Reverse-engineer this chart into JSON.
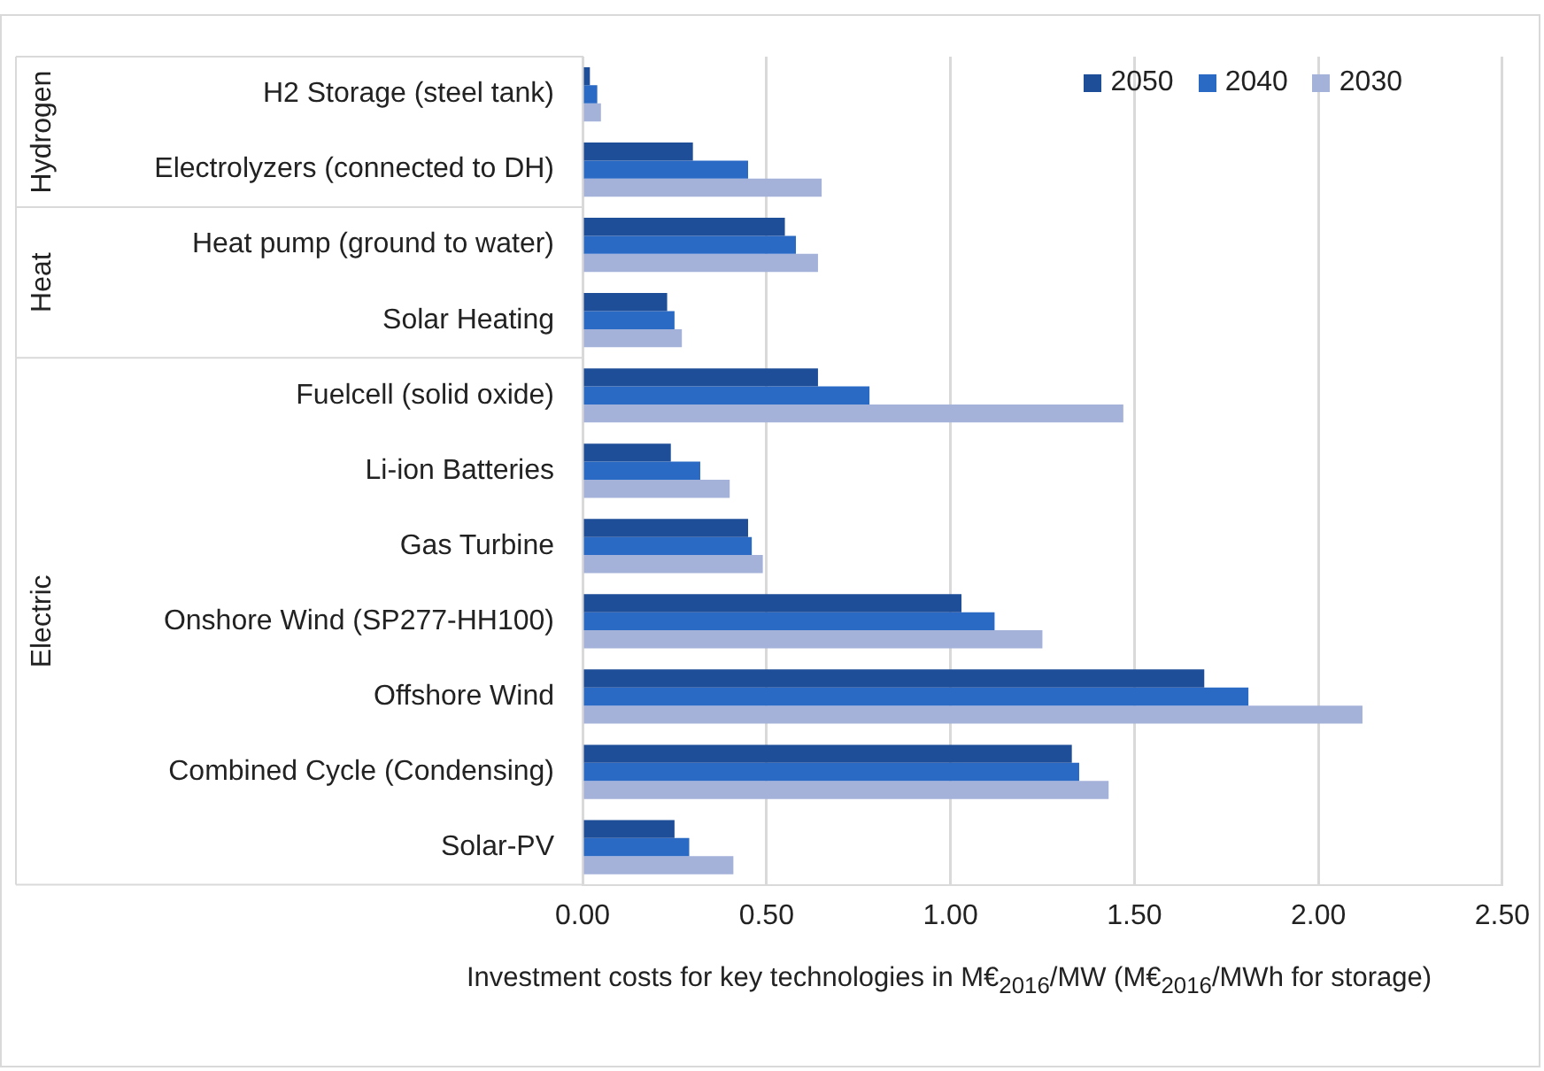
{
  "chart_data": {
    "type": "bar",
    "orientation": "horizontal",
    "xlabel": "Investment costs for key technologies in M€$_{2016}$/MW (M€$_{2016}$/MWh for storage)",
    "categories": [
      "H2 Storage (steel tank)",
      "Electrolyzers (connected to DH)",
      "Heat pump (ground to water)",
      "Solar Heating",
      "Fuelcell (solid oxide)",
      "Li-ion Batteries",
      "Gas Turbine",
      "Onshore Wind (SP277-HH100)",
      "Offshore Wind",
      "Combined Cycle (Condensing)",
      "Solar-PV"
    ],
    "series": [
      {
        "name": "2050",
        "color": "#1f4e99",
        "values": [
          0.02,
          0.3,
          0.55,
          0.23,
          0.64,
          0.24,
          0.45,
          1.03,
          1.69,
          1.33,
          0.25
        ]
      },
      {
        "name": "2040",
        "color": "#2a6ac4",
        "values": [
          0.04,
          0.45,
          0.58,
          0.25,
          0.78,
          0.32,
          0.46,
          1.12,
          1.81,
          1.35,
          0.29
        ]
      },
      {
        "name": "2030",
        "color": "#a4b2da",
        "values": [
          0.05,
          0.65,
          0.64,
          0.27,
          1.47,
          0.4,
          0.49,
          1.25,
          2.12,
          1.43,
          0.41
        ]
      }
    ],
    "xlim": [
      0,
      2.5
    ],
    "xticks": [
      {
        "value": 0,
        "label": "0.00"
      },
      {
        "value": 0.5,
        "label": "0.50"
      },
      {
        "value": 1,
        "label": "1.00"
      },
      {
        "value": 1.5,
        "label": "1.50"
      },
      {
        "value": 2,
        "label": "2.00"
      },
      {
        "value": 2.5,
        "label": "2.50"
      }
    ],
    "annotations": [
      "Hydrogen",
      "Heat",
      "Electric"
    ],
    "grid": "x",
    "legend": "top right"
  }
}
